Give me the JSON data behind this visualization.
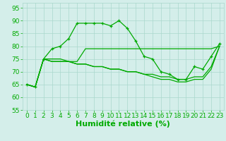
{
  "xlabel": "Humidité relative (%)",
  "xlim": [
    -0.5,
    23.5
  ],
  "ylim": [
    55,
    97
  ],
  "yticks": [
    55,
    60,
    65,
    70,
    75,
    80,
    85,
    90,
    95
  ],
  "xticks": [
    0,
    1,
    2,
    3,
    4,
    5,
    6,
    7,
    8,
    9,
    10,
    11,
    12,
    13,
    14,
    15,
    16,
    17,
    18,
    19,
    20,
    21,
    22,
    23
  ],
  "background_color": "#d4eeea",
  "grid_color": "#aad8cc",
  "line_color": "#00aa00",
  "line1": [
    65,
    64,
    75,
    79,
    80,
    83,
    89,
    89,
    89,
    89,
    88,
    90,
    87,
    82,
    76,
    75,
    70,
    69,
    67,
    67,
    72,
    71,
    76,
    81
  ],
  "line2": [
    65,
    64,
    75,
    75,
    75,
    74,
    74,
    79,
    79,
    79,
    79,
    79,
    79,
    79,
    79,
    79,
    79,
    79,
    79,
    79,
    79,
    79,
    79,
    80
  ],
  "line3": [
    65,
    64,
    75,
    74,
    74,
    74,
    73,
    73,
    72,
    72,
    71,
    71,
    70,
    70,
    69,
    69,
    68,
    68,
    67,
    67,
    68,
    68,
    72,
    80
  ],
  "line4": [
    65,
    64,
    75,
    74,
    74,
    74,
    73,
    73,
    72,
    72,
    71,
    71,
    70,
    70,
    69,
    68,
    67,
    67,
    66,
    66,
    67,
    67,
    71,
    80
  ],
  "font_color": "#00aa00",
  "tick_fontsize": 6.5,
  "xlabel_fontsize": 8
}
